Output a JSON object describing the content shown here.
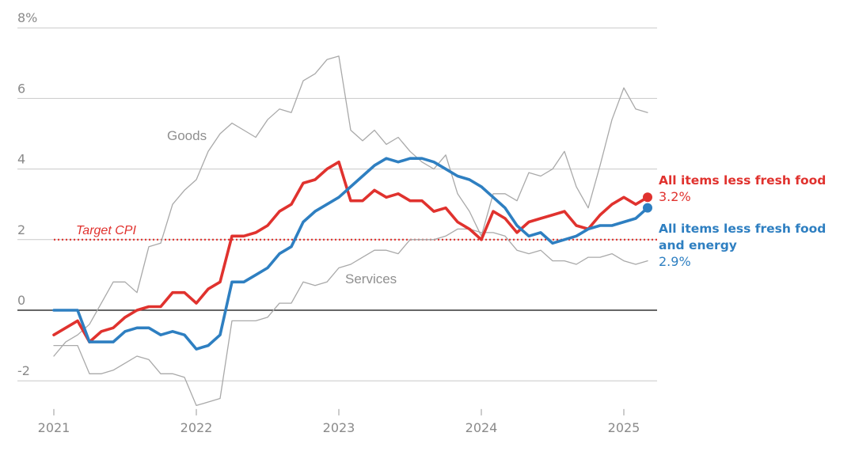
{
  "chart_data": {
    "type": "line",
    "ylim": [
      -2.8,
      8
    ],
    "xlim": [
      2021.0,
      2025.25
    ],
    "yticks": [
      {
        "value": 8,
        "label": "8%"
      },
      {
        "value": 6,
        "label": "6"
      },
      {
        "value": 4,
        "label": "4"
      },
      {
        "value": 2,
        "label": "2"
      },
      {
        "value": 0,
        "label": "0"
      },
      {
        "value": -2,
        "label": "-2"
      }
    ],
    "xticks": [
      {
        "value": 2021,
        "label": "2021"
      },
      {
        "value": 2022,
        "label": "2022"
      },
      {
        "value": 2023,
        "label": "2023"
      },
      {
        "value": 2024,
        "label": "2024"
      },
      {
        "value": 2025,
        "label": "2025"
      }
    ],
    "target": {
      "value": 2,
      "label": "Target CPI",
      "color": "#e0322e"
    },
    "series": [
      {
        "name": "Goods",
        "color": "#a9a9a9",
        "values": [
          -1.3,
          -0.9,
          -0.7,
          -0.4,
          0.2,
          0.8,
          0.8,
          0.5,
          1.8,
          1.9,
          3.0,
          3.4,
          3.7,
          4.5,
          5.0,
          5.3,
          5.1,
          4.9,
          5.4,
          5.7,
          5.6,
          6.5,
          6.7,
          7.1,
          7.2,
          5.1,
          4.8,
          5.1,
          4.7,
          4.9,
          4.5,
          4.2,
          4.0,
          4.4,
          3.3,
          2.8,
          2.1,
          3.3,
          3.3,
          3.1,
          3.9,
          3.8,
          4.0,
          4.5,
          3.5,
          2.9,
          4.1,
          5.4,
          6.3,
          5.7,
          5.6
        ]
      },
      {
        "name": "Services",
        "color": "#a9a9a9",
        "values": [
          -1.0,
          -1.0,
          -1.0,
          -1.8,
          -1.8,
          -1.7,
          -1.5,
          -1.3,
          -1.4,
          -1.8,
          -1.8,
          -1.9,
          -2.7,
          -2.6,
          -2.5,
          -0.3,
          -0.3,
          -0.3,
          -0.2,
          0.2,
          0.2,
          0.8,
          0.7,
          0.8,
          1.2,
          1.3,
          1.5,
          1.7,
          1.7,
          1.6,
          2.0,
          2.0,
          2.0,
          2.1,
          2.3,
          2.3,
          2.2,
          2.2,
          2.1,
          1.7,
          1.6,
          1.7,
          1.4,
          1.4,
          1.3,
          1.5,
          1.5,
          1.6,
          1.4,
          1.3,
          1.4
        ]
      },
      {
        "name": "All items less fresh food",
        "color": "#e0322e",
        "values": [
          -0.7,
          -0.5,
          -0.3,
          -0.9,
          -0.6,
          -0.5,
          -0.2,
          0.0,
          0.1,
          0.1,
          0.5,
          0.5,
          0.2,
          0.6,
          0.8,
          2.1,
          2.1,
          2.2,
          2.4,
          2.8,
          3.0,
          3.6,
          3.7,
          4.0,
          4.2,
          3.1,
          3.1,
          3.4,
          3.2,
          3.3,
          3.1,
          3.1,
          2.8,
          2.9,
          2.5,
          2.3,
          2.0,
          2.8,
          2.6,
          2.2,
          2.5,
          2.6,
          2.7,
          2.8,
          2.4,
          2.3,
          2.7,
          3.0,
          3.2,
          3.0,
          3.2
        ],
        "end_label": "3.2%",
        "legend_lines": [
          "All items less fresh food"
        ]
      },
      {
        "name": "All items less fresh food and energy",
        "color": "#2e7fc1",
        "values": [
          0.0,
          0.0,
          0.0,
          -0.9,
          -0.9,
          -0.9,
          -0.6,
          -0.5,
          -0.5,
          -0.7,
          -0.6,
          -0.7,
          -1.1,
          -1.0,
          -0.7,
          0.8,
          0.8,
          1.0,
          1.2,
          1.6,
          1.8,
          2.5,
          2.8,
          3.0,
          3.2,
          3.5,
          3.8,
          4.1,
          4.3,
          4.2,
          4.3,
          4.3,
          4.2,
          4.0,
          3.8,
          3.7,
          3.5,
          3.2,
          2.9,
          2.4,
          2.1,
          2.2,
          1.9,
          2.0,
          2.1,
          2.3,
          2.4,
          2.4,
          2.5,
          2.6,
          2.9
        ],
        "end_label": "2.9%",
        "legend_lines": [
          "All items less fresh food",
          "and energy"
        ]
      }
    ],
    "start": 2021.0,
    "step": 0.0833333
  }
}
